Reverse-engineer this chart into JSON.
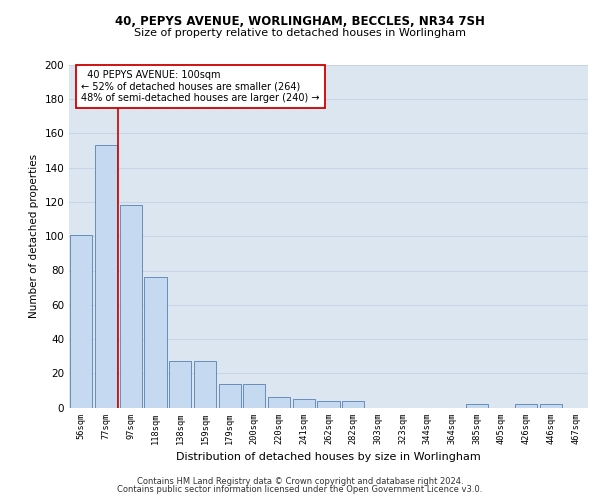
{
  "title1": "40, PEPYS AVENUE, WORLINGHAM, BECCLES, NR34 7SH",
  "title2": "Size of property relative to detached houses in Worlingham",
  "xlabel": "Distribution of detached houses by size in Worlingham",
  "ylabel": "Number of detached properties",
  "categories": [
    "56sqm",
    "77sqm",
    "97sqm",
    "118sqm",
    "138sqm",
    "159sqm",
    "179sqm",
    "200sqm",
    "220sqm",
    "241sqm",
    "262sqm",
    "282sqm",
    "303sqm",
    "323sqm",
    "344sqm",
    "364sqm",
    "385sqm",
    "405sqm",
    "426sqm",
    "446sqm",
    "467sqm"
  ],
  "values": [
    101,
    153,
    118,
    76,
    27,
    27,
    14,
    14,
    6,
    5,
    4,
    4,
    0,
    0,
    0,
    0,
    2,
    0,
    2,
    2,
    0
  ],
  "bar_color": "#c5d9f1",
  "bar_edge_color": "#5580b0",
  "grid_color": "#c8d4e8",
  "background_color": "#dce6f1",
  "vline_x": 1.5,
  "vline_color": "#cc0000",
  "annotation_text": "  40 PEPYS AVENUE: 100sqm\n← 52% of detached houses are smaller (264)\n48% of semi-detached houses are larger (240) →",
  "annotation_box_color": "#ffffff",
  "annotation_box_edge": "#cc0000",
  "ylim": [
    0,
    200
  ],
  "yticks": [
    0,
    20,
    40,
    60,
    80,
    100,
    120,
    140,
    160,
    180,
    200
  ],
  "footer1": "Contains HM Land Registry data © Crown copyright and database right 2024.",
  "footer2": "Contains public sector information licensed under the Open Government Licence v3.0."
}
